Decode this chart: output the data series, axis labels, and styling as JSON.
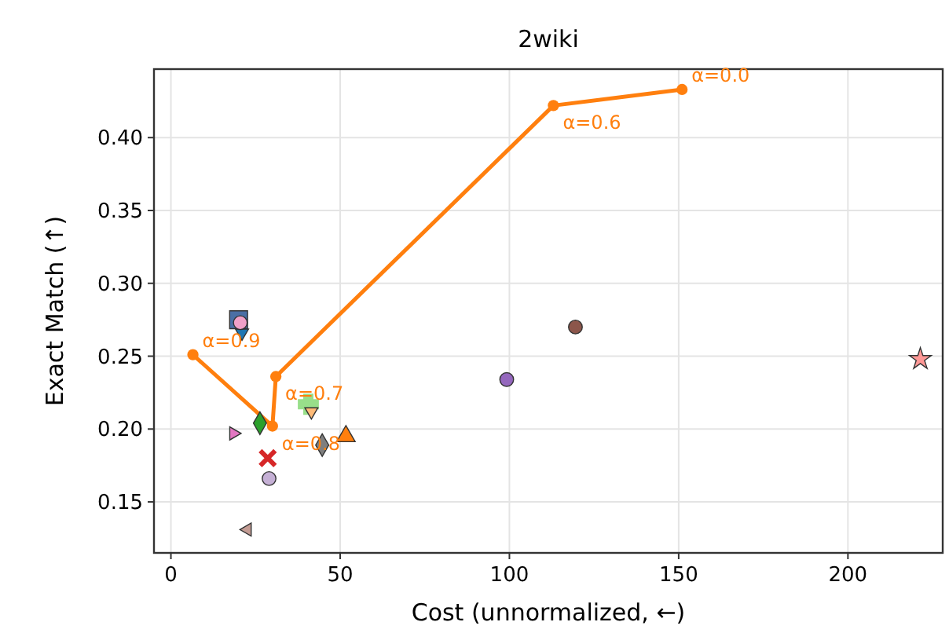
{
  "chart_data": {
    "type": "scatter",
    "title": "2wiki",
    "xlabel": "Cost (unnormalized, ←)",
    "ylabel": "Exact Match (↑)",
    "xlim": [
      -5,
      228
    ],
    "ylim": [
      0.115,
      0.447
    ],
    "xticks": [
      0,
      50,
      100,
      150,
      200
    ],
    "yticks": [
      0.15,
      {
        "value": 0.2,
        "label": "0.20"
      },
      0.25,
      {
        "value": 0.3,
        "label": "0.30"
      },
      0.35,
      {
        "value": 0.4,
        "label": "0.40"
      }
    ],
    "grid": true,
    "series": [
      {
        "type": "line",
        "color": "#ff7f0e",
        "marker": "circle",
        "line_style": "solid",
        "x": [
          6.5,
          30,
          31,
          113,
          151
        ],
        "values": [
          0.251,
          0.202,
          0.236,
          0.422,
          0.433
        ]
      },
      {
        "color": "#4a6fa5",
        "marker": "square",
        "x": [
          20
        ],
        "values": [
          0.275
        ]
      },
      {
        "color": "#1f77b4",
        "marker": "triangle-down",
        "x": [
          21
        ],
        "values": [
          0.266
        ]
      },
      {
        "color": "#f0a0c8",
        "marker": "circle",
        "x": [
          20.5
        ],
        "values": [
          0.273
        ]
      },
      {
        "color": "#2ca02c",
        "marker": "diamond",
        "x": [
          26.3
        ],
        "values": [
          0.204
        ]
      },
      {
        "color": "#e377c2",
        "marker": "triangle-right",
        "x": [
          18.5
        ],
        "values": [
          0.197
        ]
      },
      {
        "color": "#d62728",
        "marker": "x",
        "x": [
          28.6
        ],
        "values": [
          0.18
        ]
      },
      {
        "color": "#c5b0d5",
        "x": [
          29
        ],
        "values": [
          0.166
        ]
      },
      {
        "color": "#c49c94",
        "marker": "triangle-left",
        "x": [
          22.6
        ],
        "values": [
          0.131
        ]
      },
      {
        "color": "#98df8a",
        "marker": "plus",
        "x": [
          40.6
        ],
        "values": [
          0.217
        ]
      },
      {
        "color": "#ffbb78",
        "marker": "triangle-down",
        "x": [
          41.5
        ],
        "values": [
          0.212
        ]
      },
      {
        "color": "#7f7f7f",
        "marker": "diamond",
        "x": [
          44.7
        ],
        "values": [
          0.189
        ]
      },
      {
        "color": "#ff7f0e",
        "marker": "triangle",
        "x": [
          51.7
        ],
        "values": [
          0.195
        ]
      },
      {
        "color": "#9467bd",
        "x": [
          99.2
        ],
        "values": [
          0.234
        ]
      },
      {
        "color": "#8c564b",
        "x": [
          119.5
        ],
        "values": [
          0.27
        ]
      },
      {
        "color": "#ff9896",
        "marker": "star",
        "x": [
          221.4
        ],
        "values": [
          0.248
        ]
      }
    ],
    "annotations": [
      {
        "text": "α=0.9",
        "x": 6.5,
        "y": 0.251
      },
      {
        "text": "α=0.8",
        "x": 30,
        "y": 0.202
      },
      {
        "text": "α=0.7",
        "x": 31,
        "y": 0.236
      },
      {
        "text": "α=0.6",
        "x": 113,
        "y": 0.422
      },
      {
        "text": "α=0.0",
        "x": 151,
        "y": 0.433
      }
    ]
  }
}
